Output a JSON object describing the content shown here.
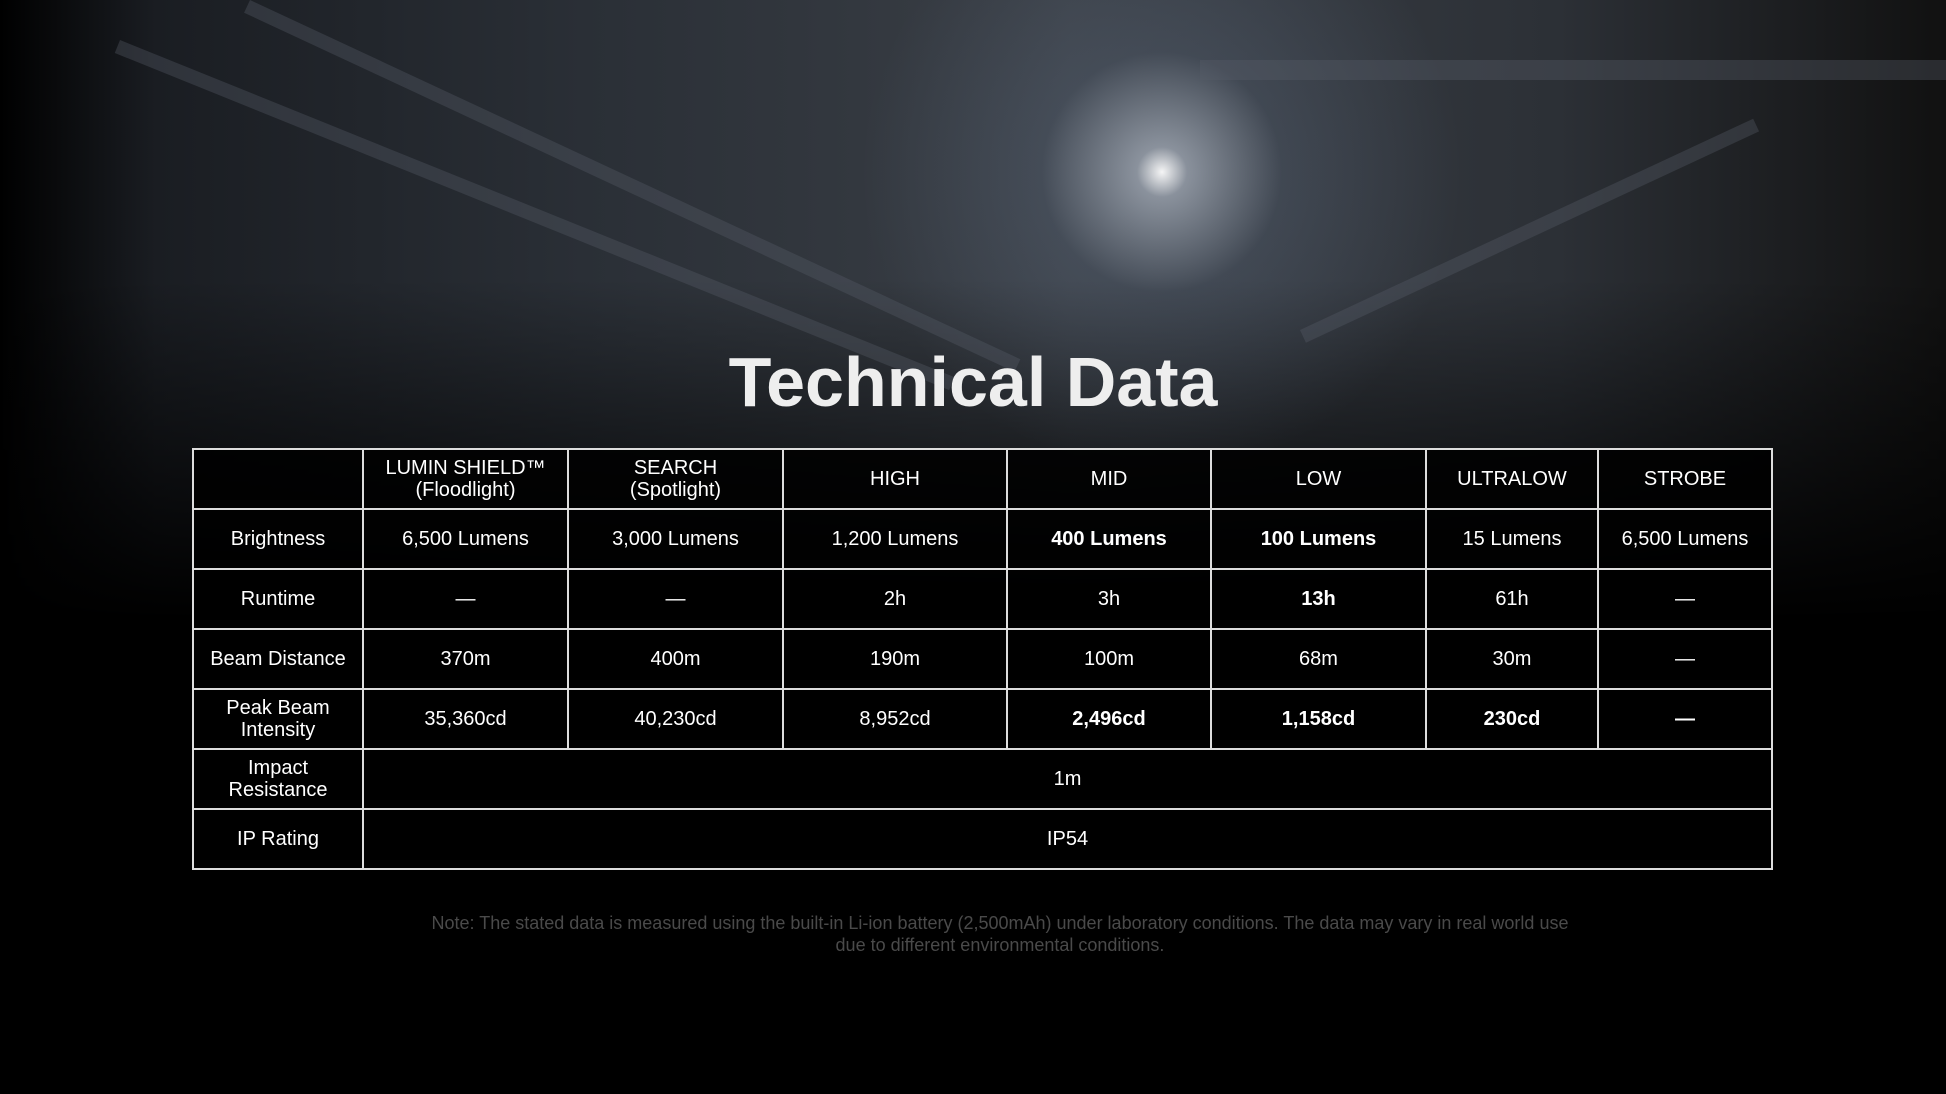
{
  "title": "Technical Data",
  "headers": [
    "",
    "LUMIN SHIELD™\n(Floodlight)",
    "SEARCH\n(Spotlight)",
    "HIGH",
    "MID",
    "LOW",
    "ULTRALOW",
    "STROBE"
  ],
  "rows": [
    {
      "label": "Brightness",
      "cells": [
        "6,500 Lumens",
        "3,000 Lumens",
        "1,200 Lumens",
        "400 Lumens",
        "100 Lumens",
        "15 Lumens",
        "6,500 Lumens"
      ]
    },
    {
      "label": "Runtime",
      "cells": [
        "—",
        "—",
        "2h",
        "3h",
        "13h",
        "61h",
        "—"
      ]
    },
    {
      "label": "Beam Distance",
      "cells": [
        "370m",
        "400m",
        "190m",
        "100m",
        "68m",
        "30m",
        "—"
      ]
    },
    {
      "label": "Peak Beam Intensity",
      "cells": [
        "35,360cd",
        "40,230cd",
        "8,952cd",
        "2,496cd",
        "1,158cd",
        "230cd",
        "—"
      ]
    },
    {
      "label": "Impact Resistance",
      "value": "1m"
    },
    {
      "label": "IP Rating",
      "value": "IP54"
    }
  ],
  "note_line1": "Note: The stated data is measured using the built-in Li-ion battery (2,500mAh) under laboratory conditions. The data may vary in real world use",
  "note_line2": "due to different environmental conditions."
}
